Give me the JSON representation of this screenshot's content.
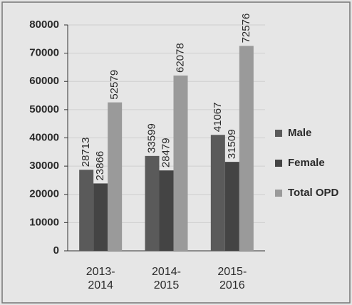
{
  "chart_data": {
    "type": "bar",
    "categories": [
      "2013-2014",
      "2014-2015",
      "2015-2016"
    ],
    "series": [
      {
        "name": "Male",
        "color": "#5a5a5a",
        "values": [
          28713,
          33599,
          41067
        ]
      },
      {
        "name": "Female",
        "color": "#444444",
        "values": [
          23866,
          28479,
          31509
        ]
      },
      {
        "name": "Total OPD",
        "color": "#9a9a9a",
        "values": [
          52579,
          62078,
          72576
        ]
      }
    ],
    "ylim": [
      0,
      80000
    ],
    "yticks": [
      0,
      10000,
      20000,
      30000,
      40000,
      50000,
      60000,
      70000,
      80000
    ],
    "grid": true,
    "legend": "right"
  }
}
